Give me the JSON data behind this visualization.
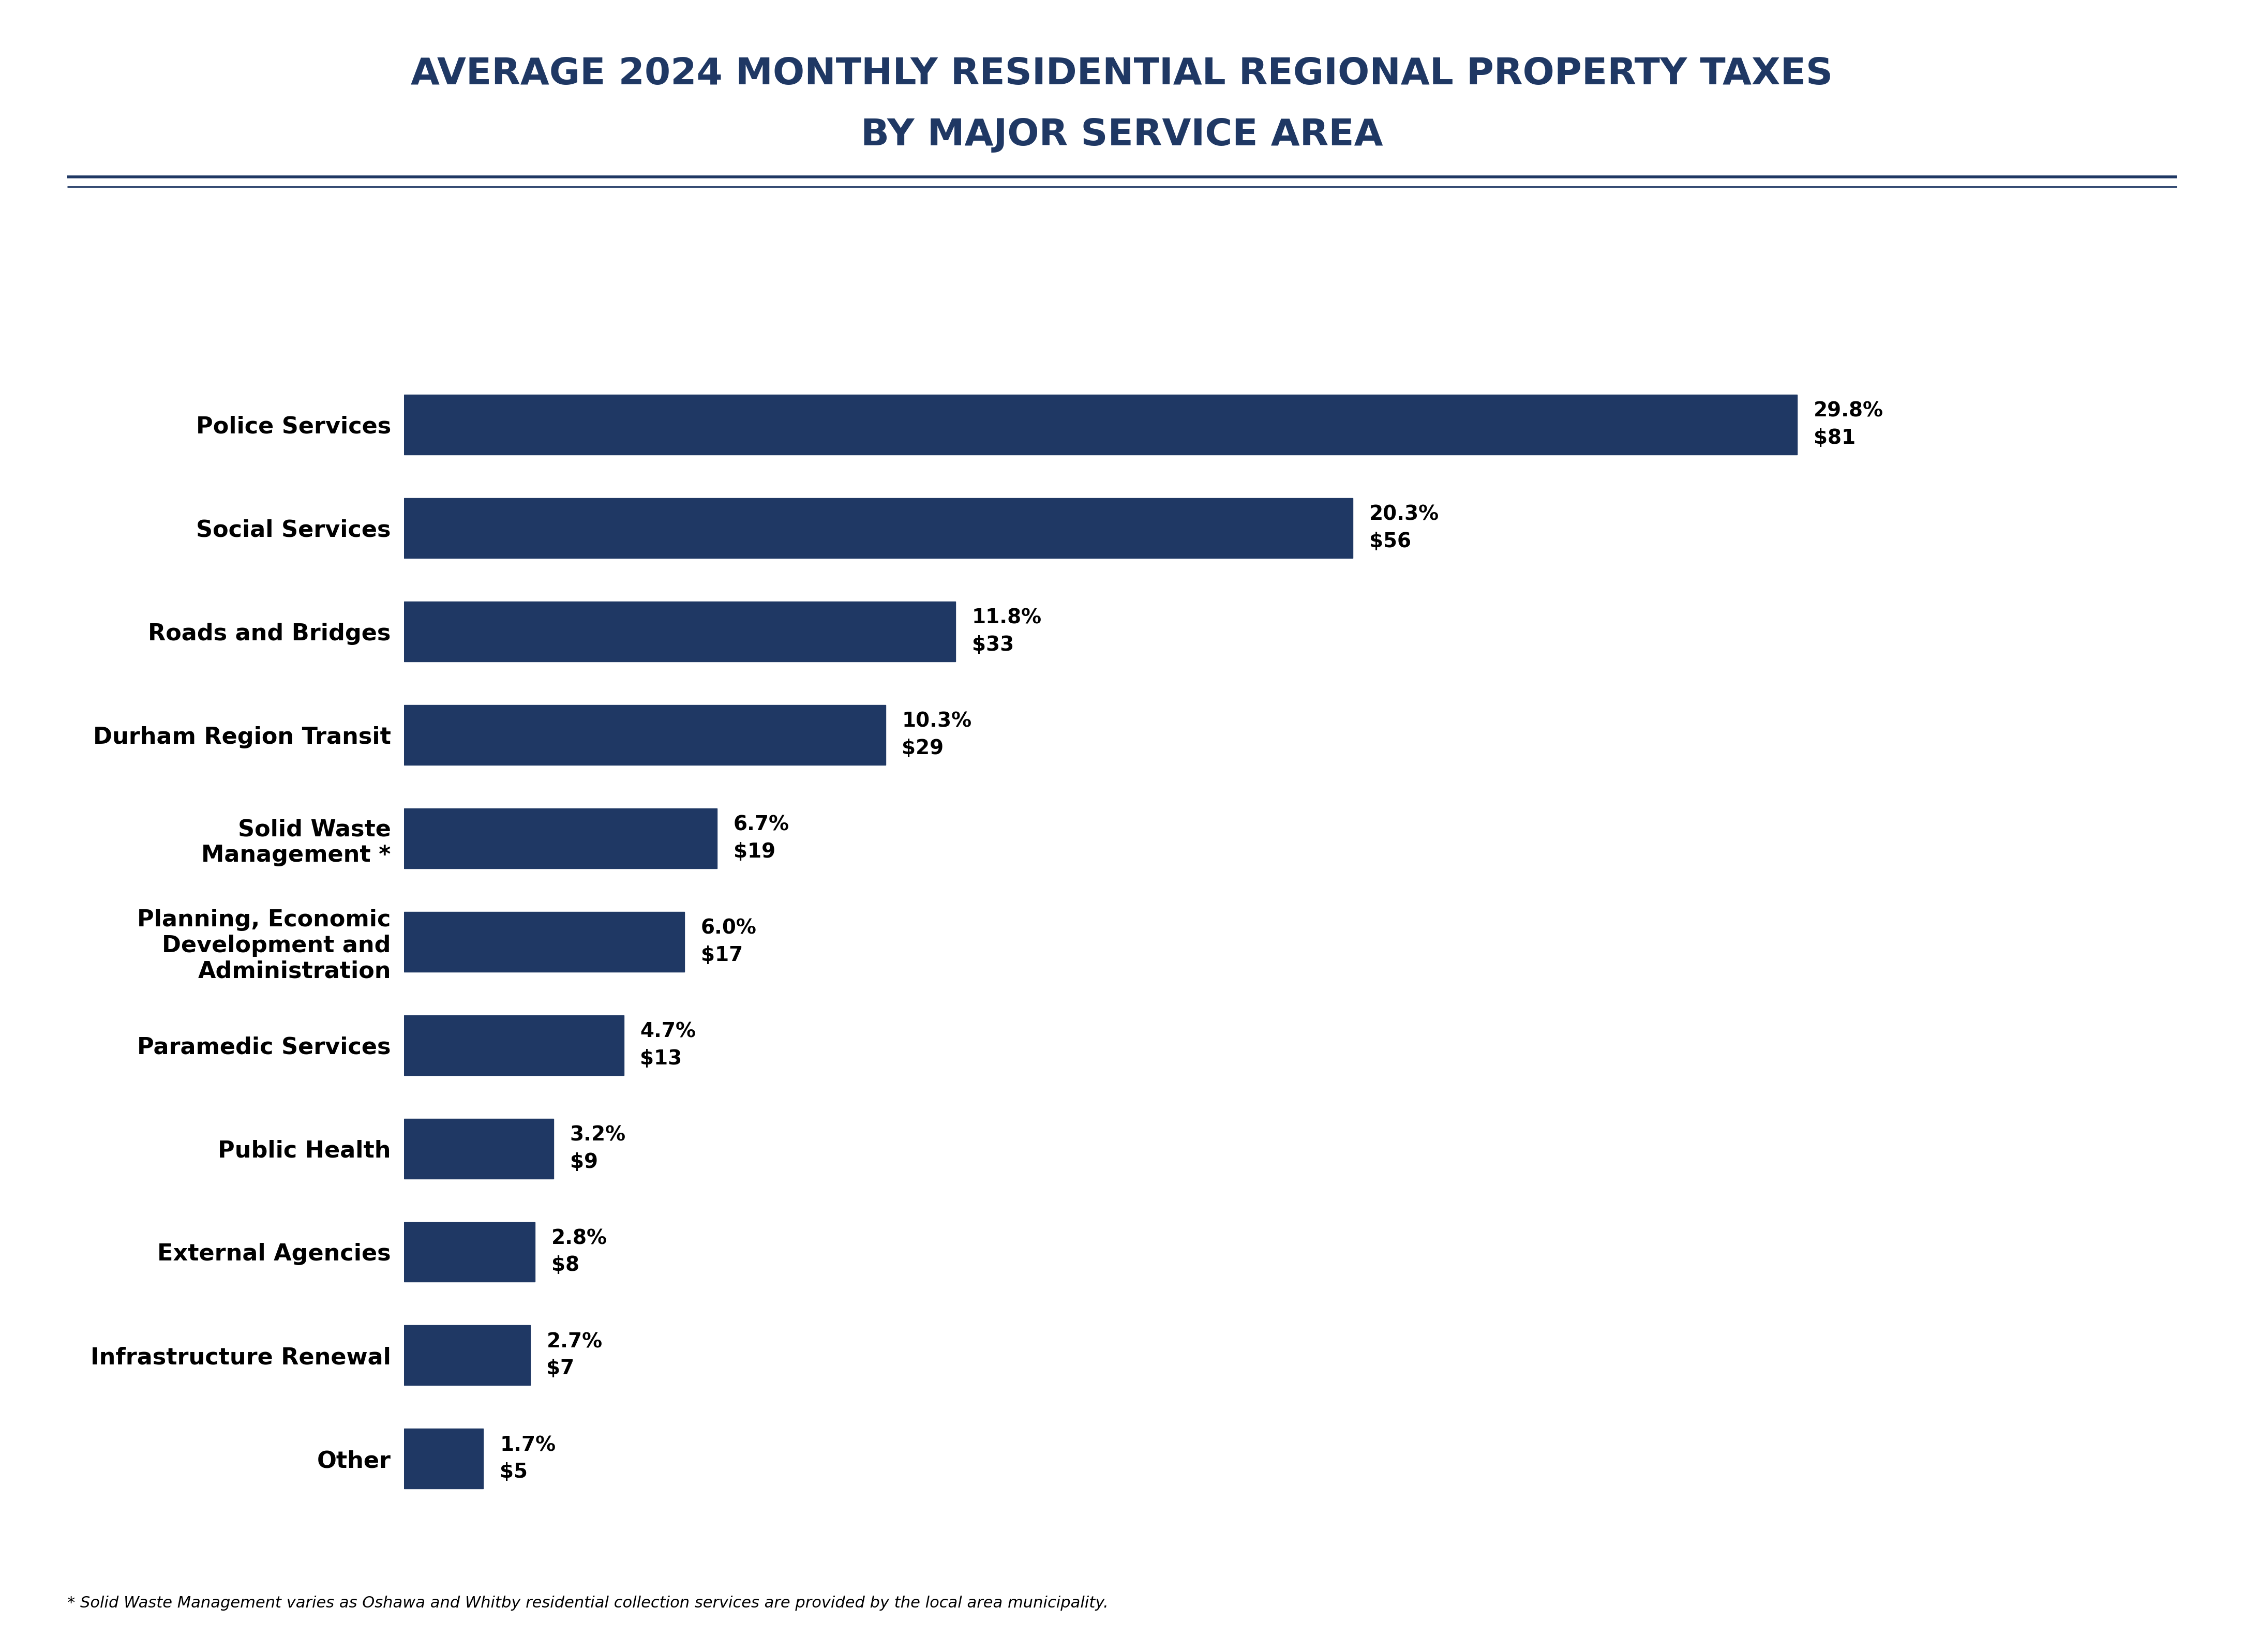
{
  "title_line1": "AVERAGE 2024 MONTHLY RESIDENTIAL REGIONAL PROPERTY TAXES",
  "title_line2": "BY MAJOR SERVICE AREA",
  "categories": [
    "Police Services",
    "Social Services",
    "Roads and Bridges",
    "Durham Region Transit",
    "Solid Waste\nManagement *",
    "Planning, Economic\nDevelopment and\nAdministration",
    "Paramedic Services",
    "Public Health",
    "External Agencies",
    "Infrastructure Renewal",
    "Other"
  ],
  "values": [
    29.8,
    20.3,
    11.8,
    10.3,
    6.7,
    6.0,
    4.7,
    3.2,
    2.8,
    2.7,
    1.7
  ],
  "dollar_values": [
    81,
    56,
    33,
    29,
    19,
    17,
    13,
    9,
    8,
    7,
    5
  ],
  "bar_color": "#1f3864",
  "title_color": "#1f3864",
  "label_color": "#000000",
  "annotation_color": "#000000",
  "background_color": "#ffffff",
  "separator_color": "#1f3864",
  "footnote": "* Solid Waste Management varies as Oshawa and Whitby residential collection services are provided by the local area municipality.",
  "title_fontsize": 52,
  "label_fontsize": 32,
  "annotation_fontsize": 28,
  "footnote_fontsize": 22
}
